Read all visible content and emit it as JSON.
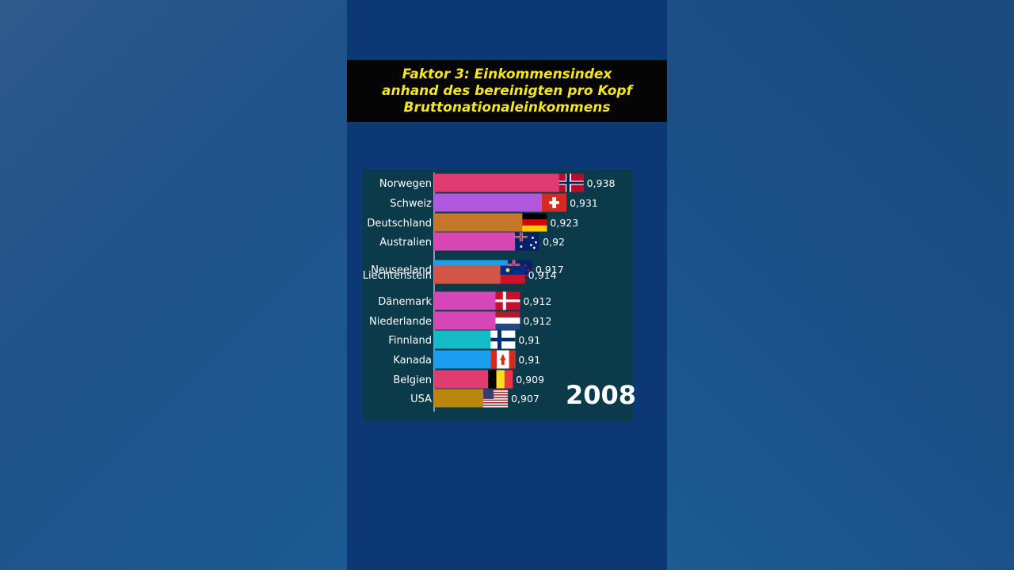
{
  "title": {
    "line1": "Faktor 3: Einkommensindex",
    "line2": "anhand des bereinigten pro Kopf",
    "line3": "Bruttonationaleinkommens"
  },
  "year": "2008",
  "chart_data": {
    "type": "bar",
    "orientation": "horizontal",
    "title": "Faktor 3: Einkommensindex anhand des bereinigten pro Kopf Bruttonationaleinkommens",
    "categories": [
      "Norwegen",
      "Schweiz",
      "Deutschland",
      "Australien",
      "Neuseeland",
      "Liechtenstein",
      "Dänemark",
      "Niederlande",
      "Finnland",
      "Kanada",
      "Belgien",
      "USA"
    ],
    "values": [
      0.938,
      0.931,
      0.923,
      0.92,
      0.917,
      0.914,
      0.912,
      0.912,
      0.91,
      0.91,
      0.909,
      0.907
    ],
    "value_labels": [
      "0,938",
      "0,931",
      "0,923",
      "0,92",
      "0,917",
      "0,914",
      "0,912",
      "0,912",
      "0,91",
      "0,91",
      "0,909",
      "0,907"
    ],
    "colors": [
      "#e23a72",
      "#b057dd",
      "#c6762a",
      "#d748b4",
      "#1f9ee6",
      "#d35548",
      "#d746b6",
      "#d746b6",
      "#13bcc6",
      "#1c9ef0",
      "#e03c70",
      "#b9860e"
    ],
    "flags": [
      "norway-flag",
      "switzerland-flag",
      "germany-flag",
      "australia-flag",
      "new-zealand-flag",
      "liechtenstein-flag",
      "denmark-flag",
      "netherlands-flag",
      "finland-flag",
      "canada-flag",
      "belgium-flag",
      "usa-flag"
    ],
    "grid": false,
    "legend": "none"
  }
}
